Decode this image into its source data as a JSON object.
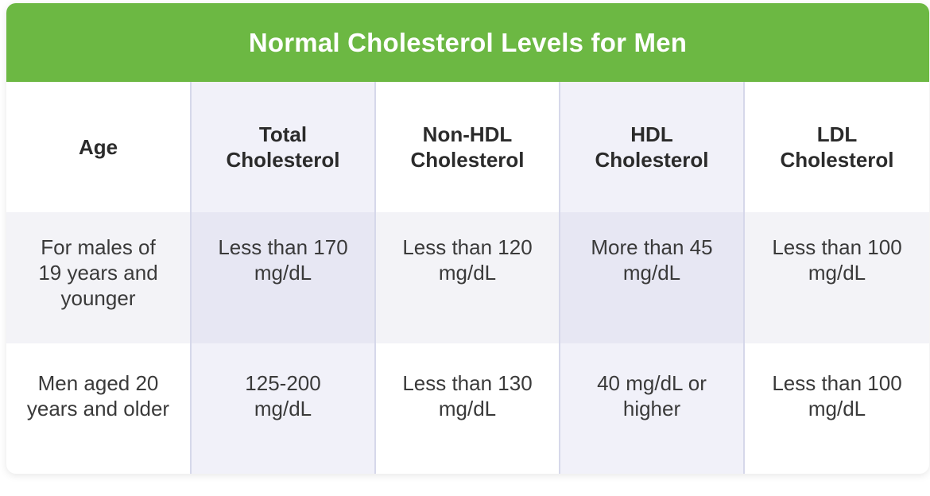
{
  "title": "Normal Cholesterol Levels for Men",
  "headers": [
    "Age",
    "Total Cholesterol",
    "Non-HDL Cholesterol",
    "HDL Cholesterol",
    "LDL Cholesterol"
  ],
  "rows": [
    [
      "For males of 19 years and younger",
      "Less than 170 mg/dL",
      "Less than 120 mg/dL",
      "More than 45 mg/dL",
      "Less than 100 mg/dL"
    ],
    [
      "Men aged 20 years and older",
      "125-200 mg/dL",
      "Less than 130 mg/dL",
      "40 mg/dL or higher",
      "Less than 100 mg/dL"
    ]
  ],
  "colors": {
    "title_bar": "#6cb843",
    "shaded_column": "#f1f1f9"
  }
}
